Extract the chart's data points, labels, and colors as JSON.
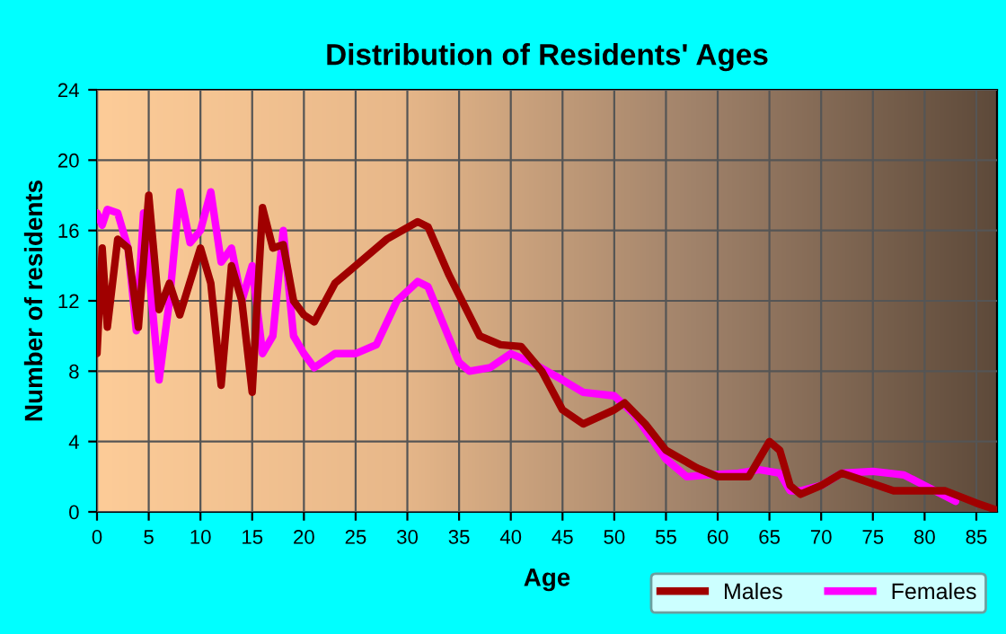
{
  "chart_data": {
    "type": "line",
    "title": "Distribution of Residents' Ages",
    "xlabel": "Age",
    "ylabel": "Number of residents",
    "xlim": [
      0,
      87
    ],
    "xticks": [
      0,
      5,
      10,
      15,
      20,
      25,
      30,
      35,
      40,
      45,
      50,
      55,
      60,
      65,
      70,
      75,
      80,
      85
    ],
    "ylim": [
      0,
      24
    ],
    "yticks": [
      0,
      4,
      8,
      12,
      16,
      20,
      24
    ],
    "grid": true,
    "legend": "bottom",
    "marker": "none",
    "line_style": "solid",
    "series": [
      {
        "name": "Males",
        "color": "#a00000",
        "x": [
          0,
          0.5,
          1,
          2,
          3,
          4,
          5,
          6,
          7,
          8,
          10,
          11,
          12,
          13,
          14,
          15,
          16,
          17,
          18,
          19,
          20,
          21,
          23,
          25,
          28,
          31,
          32,
          34,
          37,
          39,
          41,
          43,
          45,
          47,
          50,
          51,
          53,
          55,
          58,
          60,
          63,
          65,
          66,
          67,
          68,
          70,
          72,
          74,
          77,
          80,
          82,
          85,
          87
        ],
        "values": [
          9,
          15,
          10.5,
          15.5,
          15,
          10.5,
          18,
          11.5,
          13,
          11.2,
          15,
          13,
          7.2,
          14,
          12,
          6.8,
          17.3,
          15,
          15.2,
          12,
          11.2,
          10.8,
          13,
          14,
          15.5,
          16.5,
          16.2,
          13.5,
          10,
          9.5,
          9.4,
          8,
          5.8,
          5,
          5.8,
          6.2,
          5,
          3.5,
          2.5,
          2,
          2,
          4,
          3.5,
          1.5,
          1,
          1.5,
          2.2,
          1.8,
          1.2,
          1.2,
          1.2,
          0.5,
          0.1
        ]
      },
      {
        "name": "Females",
        "color": "#ff00ff",
        "x": [
          0,
          0.5,
          1,
          2,
          3,
          3.8,
          4.5,
          6,
          7,
          8,
          9,
          10,
          11,
          12,
          13,
          14,
          15,
          16,
          17,
          18,
          19,
          20,
          21,
          23,
          25,
          27,
          29,
          31,
          32,
          35,
          36,
          38,
          40,
          42,
          45,
          47,
          50,
          52,
          55,
          57,
          59,
          62,
          64,
          66,
          67,
          68,
          70,
          72,
          75,
          78,
          80,
          83
        ],
        "values": [
          17,
          16.3,
          17.2,
          17,
          15,
          10.3,
          17,
          7.5,
          12,
          18.2,
          15.3,
          16,
          18.2,
          14.2,
          15,
          12,
          14,
          9,
          10,
          16,
          10,
          9,
          8.2,
          9,
          9,
          9.5,
          12,
          13.1,
          12.8,
          8.5,
          8,
          8.2,
          9,
          8.5,
          7.5,
          6.8,
          6.6,
          5.5,
          3,
          2,
          2.1,
          2.2,
          2.4,
          2.2,
          1.2,
          1.2,
          1.5,
          2.2,
          2.3,
          2.1,
          1.5,
          0.6
        ]
      }
    ]
  }
}
